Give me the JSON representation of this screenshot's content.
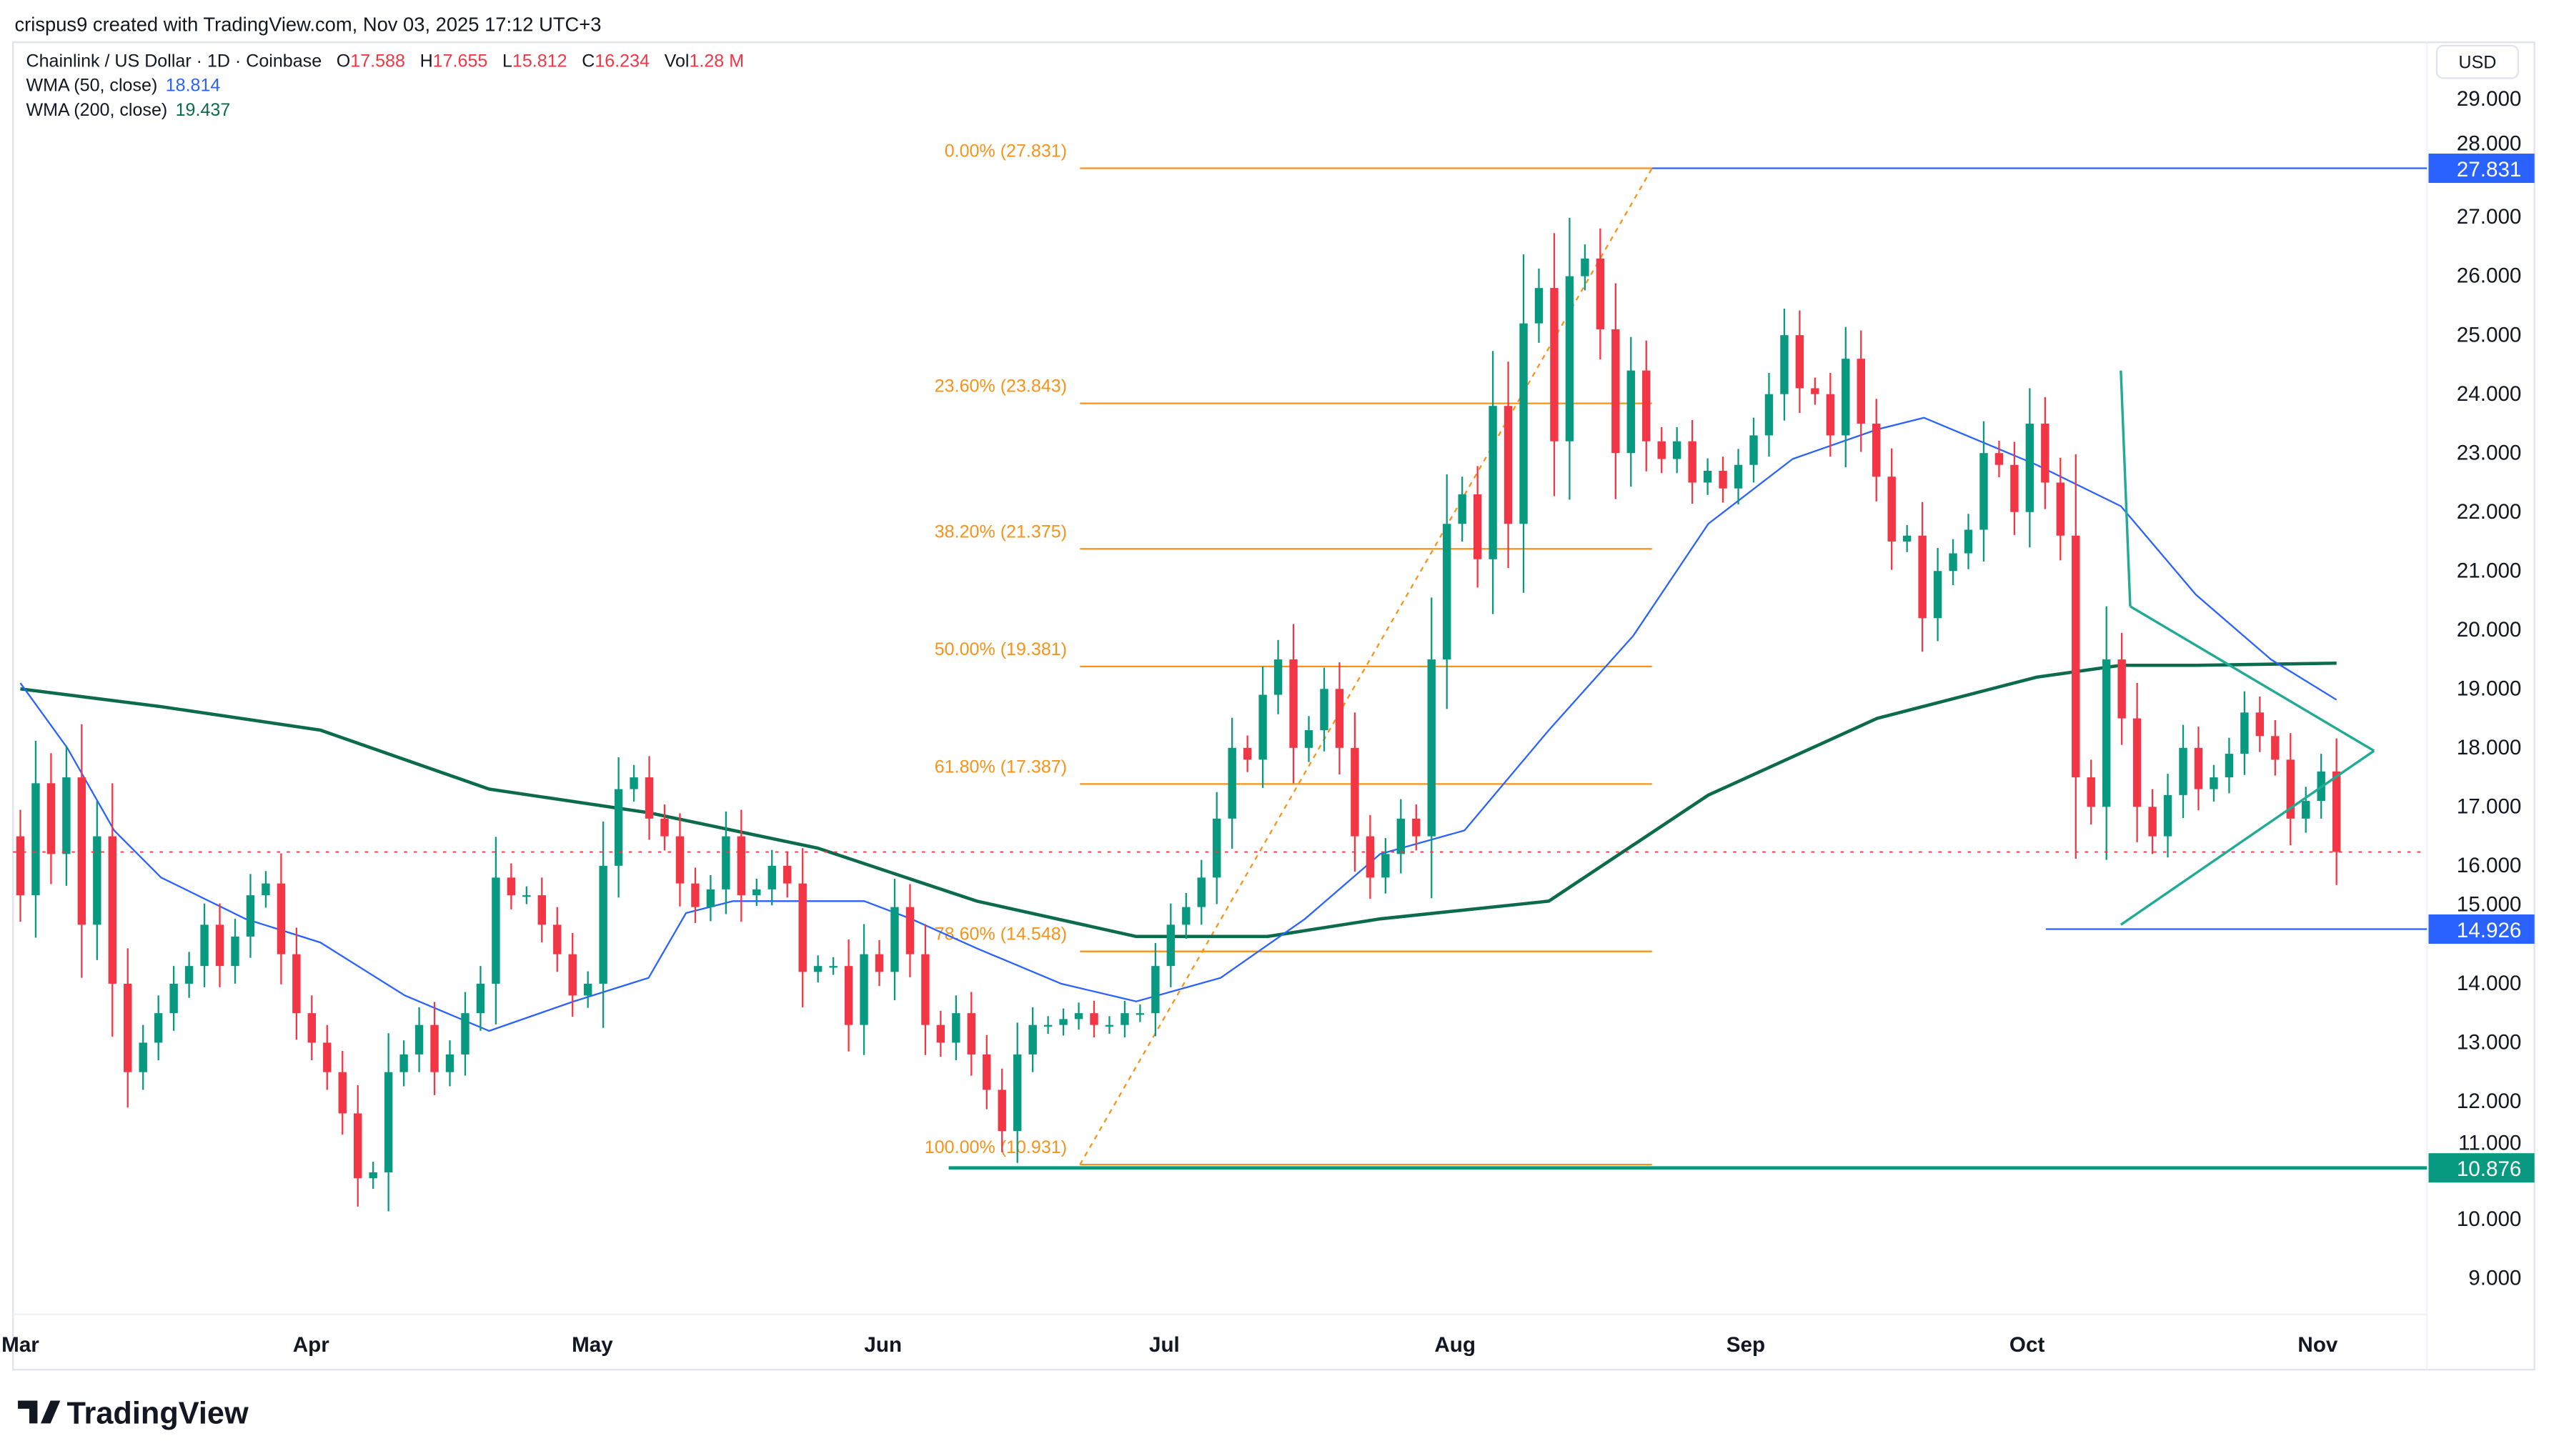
{
  "header": {
    "attribution": "crispus9 created with TradingView.com, Nov 03, 2025 17:12 UTC+3"
  },
  "legend": {
    "symbol": "Chainlink / US Dollar · 1D · Coinbase",
    "o_label": "O",
    "o": "17.588",
    "h_label": "H",
    "h": "17.655",
    "l_label": "L",
    "l": "15.812",
    "c_label": "C",
    "c": "16.234",
    "vol_label": "Vol",
    "vol": "1.28 M",
    "wma50_label": "WMA (50, close)",
    "wma50": "18.814",
    "wma200_label": "WMA (200, close)",
    "wma200": "19.437"
  },
  "currency_button": "USD",
  "footer": {
    "logo": "TradingView"
  },
  "colors": {
    "up": "#089981",
    "down": "#f23645",
    "wma50": "#2962ff",
    "wma200": "#0b6b4c",
    "fib": "#f7931a",
    "level_blue": "#2962ff",
    "level_teal": "#089981",
    "triangle": "#22ab94"
  },
  "chart_data": {
    "type": "candlestick",
    "title": "Chainlink / US Dollar · 1D · Coinbase",
    "x_range": [
      "2025-03-01",
      "2025-11-03"
    ],
    "ylim": [
      8.4,
      29.6
    ],
    "y_ticks": [
      "29.000",
      "28.000",
      "27.000",
      "26.000",
      "25.000",
      "24.000",
      "23.000",
      "22.000",
      "21.000",
      "20.000",
      "19.000",
      "18.000",
      "17.000",
      "16.000",
      "15.000",
      "14.000",
      "13.000",
      "12.000",
      "11.000",
      "10.000",
      "9.000"
    ],
    "x_ticks": [
      {
        "label": "Mar",
        "date": "2025-03-01"
      },
      {
        "label": "Apr",
        "date": "2025-04-01"
      },
      {
        "label": "May",
        "date": "2025-05-01"
      },
      {
        "label": "Jun",
        "date": "2025-06-01"
      },
      {
        "label": "Jul",
        "date": "2025-07-01"
      },
      {
        "label": "Aug",
        "date": "2025-08-01"
      },
      {
        "label": "Sep",
        "date": "2025-09-01"
      },
      {
        "label": "Oct",
        "date": "2025-10-01"
      },
      {
        "label": "Nov",
        "date": "2025-11-01"
      }
    ],
    "first_open": 16.5,
    "closes": [
      15.5,
      17.4,
      16.2,
      17.5,
      15.0,
      16.5,
      14.0,
      12.5,
      13.0,
      13.5,
      14.0,
      14.3,
      15.0,
      14.3,
      14.8,
      15.5,
      15.7,
      14.5,
      13.5,
      13.0,
      12.5,
      11.8,
      10.7,
      10.8,
      12.5,
      12.8,
      13.3,
      12.5,
      12.8,
      13.5,
      14.0,
      15.8,
      15.5,
      15.5,
      15.0,
      14.5,
      13.8,
      14.0,
      16.0,
      17.3,
      17.5,
      16.8,
      16.5,
      15.7,
      15.3,
      15.6,
      16.5,
      15.5,
      15.6,
      16.0,
      15.7,
      14.2,
      14.3,
      14.3,
      13.3,
      14.5,
      14.2,
      15.3,
      14.5,
      13.3,
      13.0,
      13.5,
      12.8,
      12.2,
      11.5,
      12.8,
      13.3,
      13.3,
      13.4,
      13.5,
      13.3,
      13.3,
      13.5,
      13.5,
      14.3,
      15.0,
      15.3,
      15.8,
      16.8,
      18.0,
      17.8,
      18.9,
      19.5,
      18.0,
      18.3,
      19.0,
      18.0,
      16.5,
      15.8,
      16.2,
      16.8,
      16.5,
      19.5,
      21.8,
      22.3,
      21.2,
      23.8,
      21.8,
      25.2,
      25.8,
      23.2,
      26.0,
      26.3,
      25.1,
      23.0,
      24.4,
      23.2,
      22.9,
      23.2,
      22.5,
      22.7,
      22.4,
      22.8,
      23.3,
      24.0,
      25.0,
      24.1,
      24.0,
      23.3,
      24.6,
      23.5,
      22.6,
      21.5,
      21.6,
      20.2,
      21.0,
      21.3,
      21.7,
      23.0,
      22.8,
      22.0,
      23.5,
      22.5,
      21.6,
      17.5,
      17.0,
      19.5,
      18.5,
      17.0,
      16.5,
      17.2,
      18.0,
      17.3,
      17.5,
      17.9,
      18.6,
      18.2,
      17.8,
      16.8,
      17.1,
      17.6,
      16.234
    ],
    "wma50": [
      [
        "2025-03-01",
        19.1
      ],
      [
        "2025-03-06",
        18.0
      ],
      [
        "2025-03-11",
        16.6
      ],
      [
        "2025-03-16",
        15.8
      ],
      [
        "2025-03-25",
        15.1
      ],
      [
        "2025-04-02",
        14.7
      ],
      [
        "2025-04-11",
        13.8
      ],
      [
        "2025-04-20",
        13.2
      ],
      [
        "2025-04-29",
        13.7
      ],
      [
        "2025-05-07",
        14.1
      ],
      [
        "2025-05-11",
        15.2
      ],
      [
        "2025-05-16",
        15.4
      ],
      [
        "2025-05-25",
        15.4
      ],
      [
        "2025-05-30",
        15.4
      ],
      [
        "2025-06-04",
        15.1
      ],
      [
        "2025-06-11",
        14.6
      ],
      [
        "2025-06-20",
        14.0
      ],
      [
        "2025-06-28",
        13.7
      ],
      [
        "2025-07-07",
        14.1
      ],
      [
        "2025-07-16",
        15.1
      ],
      [
        "2025-07-24",
        16.2
      ],
      [
        "2025-08-02",
        16.6
      ],
      [
        "2025-08-11",
        18.3
      ],
      [
        "2025-08-20",
        19.9
      ],
      [
        "2025-08-28",
        21.8
      ],
      [
        "2025-09-06",
        22.9
      ],
      [
        "2025-09-15",
        23.4
      ],
      [
        "2025-09-20",
        23.6
      ],
      [
        "2025-10-02",
        22.8
      ],
      [
        "2025-10-11",
        22.1
      ],
      [
        "2025-10-19",
        20.6
      ],
      [
        "2025-10-27",
        19.5
      ],
      [
        "2025-11-03",
        18.814
      ]
    ],
    "wma200": [
      [
        "2025-03-01",
        19.0
      ],
      [
        "2025-03-16",
        18.7
      ],
      [
        "2025-04-02",
        18.3
      ],
      [
        "2025-04-20",
        17.3
      ],
      [
        "2025-05-07",
        16.9
      ],
      [
        "2025-05-25",
        16.3
      ],
      [
        "2025-06-11",
        15.4
      ],
      [
        "2025-06-28",
        14.8
      ],
      [
        "2025-07-12",
        14.8
      ],
      [
        "2025-07-24",
        15.1
      ],
      [
        "2025-08-11",
        15.4
      ],
      [
        "2025-08-28",
        17.2
      ],
      [
        "2025-09-15",
        18.5
      ],
      [
        "2025-10-02",
        19.2
      ],
      [
        "2025-10-11",
        19.4
      ],
      [
        "2025-10-19",
        19.4
      ],
      [
        "2025-11-03",
        19.437
      ]
    ],
    "fibonacci": {
      "from": {
        "date": "2025-06-22",
        "price": 10.931
      },
      "to": {
        "date": "2025-08-22",
        "price": 27.831
      },
      "levels": [
        {
          "label": "0.00% (27.831)",
          "price": 27.831
        },
        {
          "label": "23.60% (23.843)",
          "price": 23.843
        },
        {
          "label": "38.20% (21.375)",
          "price": 21.375
        },
        {
          "label": "50.00% (19.381)",
          "price": 19.381
        },
        {
          "label": "61.80% (17.387)",
          "price": 17.387
        },
        {
          "label": "78.60% (14.548)",
          "price": 14.548
        },
        {
          "label": "100.00% (10.931)",
          "price": 10.931
        }
      ]
    },
    "horizontal_levels": [
      {
        "label": "27.831",
        "price": 27.831,
        "from": "2025-08-22",
        "color": "#2962ff"
      },
      {
        "label": "14.926",
        "price": 14.926,
        "from": "2025-10-03",
        "color": "#2962ff"
      },
      {
        "label": "10.876",
        "price": 10.876,
        "from": "2025-06-08",
        "color": "#089981"
      }
    ],
    "last_price": 16.234,
    "triangle": [
      [
        [
          "2025-10-11",
          24.4
        ],
        [
          "2025-10-12",
          20.4
        ]
      ],
      [
        [
          "2025-10-12",
          20.4
        ],
        [
          "2025-11-07",
          17.95
        ]
      ],
      [
        [
          "2025-10-11",
          15.0
        ],
        [
          "2025-11-07",
          17.95
        ]
      ]
    ]
  }
}
